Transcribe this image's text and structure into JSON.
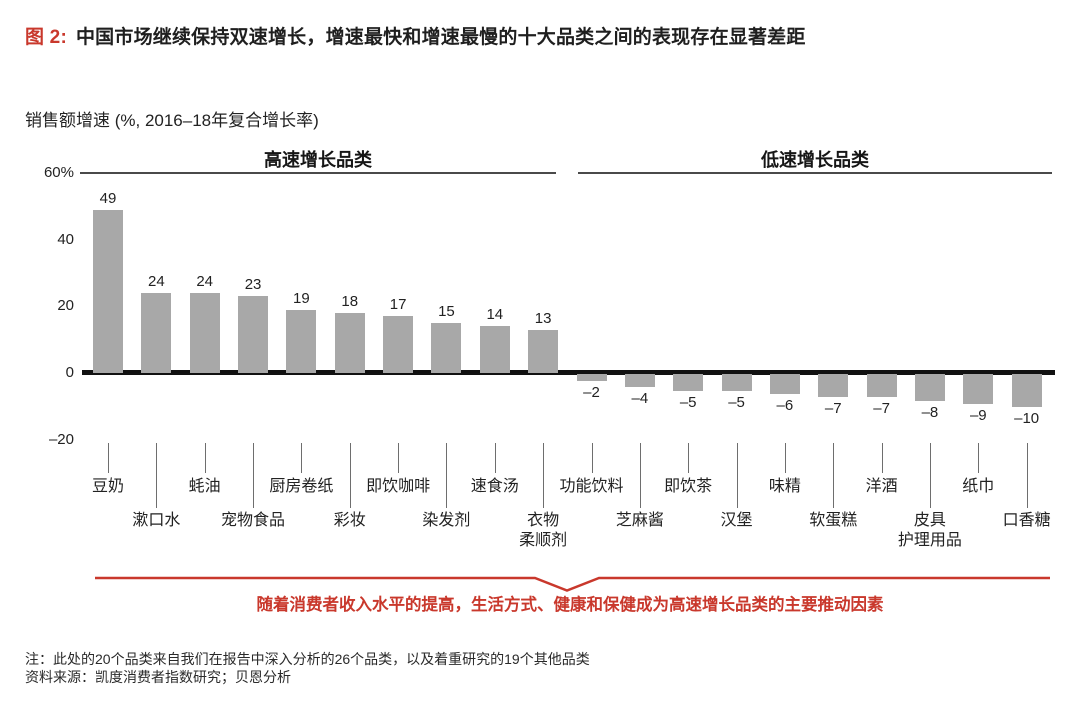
{
  "figure": {
    "label": "图 2:",
    "title": "中国市场继续保持双速增长，增速最快和增速最慢的十大品类之间的表现存在显著差距"
  },
  "chart_title": "销售额增速 (%, 2016–18年复合增长率)",
  "sections": {
    "high": "高速增长品类",
    "low": "低速增长品类"
  },
  "chart_data": {
    "type": "bar",
    "title": "销售额增速 (%, 2016–18年复合增长率)",
    "xlabel": "",
    "ylabel": "销售额增速 (%)",
    "ylim": [
      -20,
      60
    ],
    "grid": false,
    "y_axis": {
      "labels": [
        "60%",
        "40",
        "20",
        "0",
        "–20"
      ],
      "values": [
        60,
        40,
        20,
        0,
        -20
      ]
    },
    "categories": [
      "豆奶",
      "漱口水",
      "蚝油",
      "宠物食品",
      "厨房卷纸",
      "彩妆",
      "即饮咖啡",
      "染发剂",
      "速食汤",
      "衣物柔顺剂",
      "功能饮料",
      "芝麻酱",
      "即饮茶",
      "汉堡",
      "味精",
      "软蛋糕",
      "洋酒",
      "皮具护理用品",
      "纸巾",
      "口香糖"
    ],
    "values": [
      49,
      24,
      24,
      23,
      19,
      18,
      17,
      15,
      14,
      13,
      -2,
      -4,
      -5,
      -5,
      -6,
      -7,
      -7,
      -8,
      -9,
      -10
    ],
    "value_labels": [
      "49",
      "24",
      "24",
      "23",
      "19",
      "18",
      "17",
      "15",
      "14",
      "13",
      "–2",
      "–4",
      "–5",
      "–5",
      "–6",
      "–7",
      "–7",
      "–8",
      "–9",
      "–10"
    ],
    "label_rows": [
      1,
      2,
      1,
      2,
      1,
      2,
      1,
      2,
      1,
      2,
      1,
      2,
      1,
      2,
      1,
      2,
      1,
      2,
      1,
      2
    ],
    "label_lines": [
      [
        "豆奶"
      ],
      [
        "漱口水"
      ],
      [
        "蚝油"
      ],
      [
        "宠物食品"
      ],
      [
        "厨房卷纸"
      ],
      [
        "彩妆"
      ],
      [
        "即饮咖啡"
      ],
      [
        "染发剂"
      ],
      [
        "速食汤"
      ],
      [
        "衣物",
        "柔顺剂"
      ],
      [
        "功能饮料"
      ],
      [
        "芝麻酱"
      ],
      [
        "即饮茶"
      ],
      [
        "汉堡"
      ],
      [
        "味精"
      ],
      [
        "软蛋糕"
      ],
      [
        "洋酒"
      ],
      [
        "皮具",
        "护理用品"
      ],
      [
        "纸巾"
      ],
      [
        "口香糖"
      ]
    ],
    "sections": [
      {
        "name": "高速增长品类",
        "count": 10
      },
      {
        "name": "低速增长品类",
        "count": 10
      }
    ],
    "legend": null
  },
  "annotation": "随着消费者收入水平的提高，生活方式、健康和保健成为高速增长品类的主要推动因素",
  "notes": {
    "note": "注：此处的20个品类来自我们在报告中深入分析的26个品类，以及着重研究的19个其他品类",
    "source": "资料来源：凯度消费者指数研究；贝恩分析"
  },
  "colors": {
    "bar": "#a8a8a8",
    "accent": "#c9382c",
    "axis": "#111111",
    "tick": "#6e6e6e",
    "text": "#1f1f1f"
  }
}
